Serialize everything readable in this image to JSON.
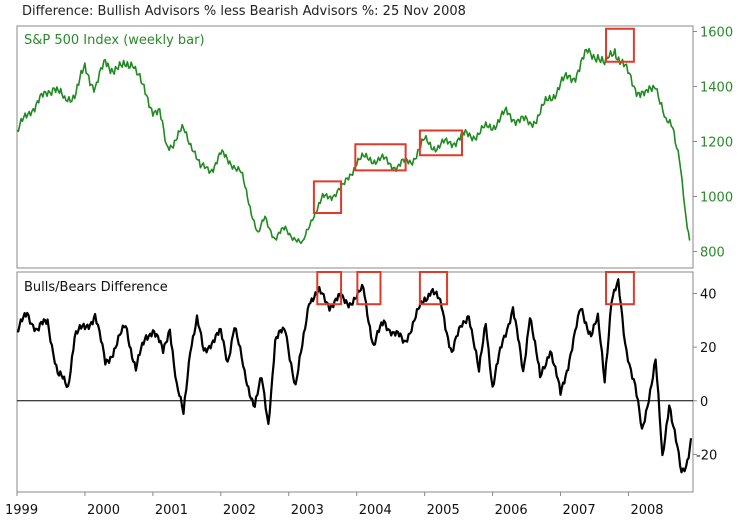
{
  "title": "Difference: Bullish Advisors % less Bearish Advisors %: 25 Nov 2008",
  "colors": {
    "sp500_line": "#1f8a1f",
    "sp500_label": "#2a8a2a",
    "diff_line": "#000000",
    "highlight_box": "#e03a2a",
    "axis": "#888888",
    "zero_line": "#000000"
  },
  "chart_data": [
    {
      "type": "line",
      "title": "S&P 500 Index (weekly bar)",
      "xlim": [
        1999.0,
        2008.95
      ],
      "ylim": [
        740,
        1620
      ],
      "yticks": [
        800,
        1000,
        1200,
        1400,
        1600
      ],
      "series": [
        {
          "name": "S&P 500 Index (weekly bar)",
          "x": [
            1999.0,
            1999.2,
            1999.4,
            1999.55,
            1999.7,
            1999.85,
            2000.0,
            2000.15,
            2000.3,
            2000.45,
            2000.55,
            2000.7,
            2000.85,
            2001.0,
            2001.1,
            2001.2,
            2001.3,
            2001.45,
            2001.6,
            2001.7,
            2001.85,
            2002.0,
            2002.15,
            2002.3,
            2002.45,
            2002.55,
            2002.65,
            2002.8,
            2002.95,
            2003.1,
            2003.2,
            2003.35,
            2003.5,
            2003.65,
            2003.8,
            2004.0,
            2004.2,
            2004.4,
            2004.6,
            2004.8,
            2005.0,
            2005.2,
            2005.4,
            2005.6,
            2005.8,
            2006.0,
            2006.2,
            2006.4,
            2006.55,
            2006.8,
            2007.0,
            2007.2,
            2007.4,
            2007.55,
            2007.65,
            2007.8,
            2007.95,
            2008.1,
            2008.25,
            2008.4,
            2008.55,
            2008.65,
            2008.75,
            2008.85,
            2008.9
          ],
          "values": [
            1230,
            1320,
            1360,
            1410,
            1340,
            1380,
            1460,
            1400,
            1480,
            1470,
            1460,
            1500,
            1390,
            1320,
            1300,
            1180,
            1200,
            1240,
            1180,
            1100,
            1100,
            1150,
            1130,
            1080,
            950,
            860,
            920,
            850,
            880,
            850,
            820,
            930,
            990,
            1010,
            1030,
            1130,
            1140,
            1130,
            1110,
            1130,
            1200,
            1180,
            1200,
            1220,
            1230,
            1260,
            1300,
            1280,
            1260,
            1340,
            1410,
            1440,
            1520,
            1520,
            1470,
            1540,
            1460,
            1400,
            1360,
            1420,
            1260,
            1260,
            1150,
            900,
            840
          ]
        }
      ]
    },
    {
      "type": "line",
      "title": "Bulls/Bears Difference",
      "xlim": [
        1999.0,
        2008.95
      ],
      "ylim": [
        -34,
        48
      ],
      "yticks": [
        -20,
        0,
        20,
        40
      ],
      "xticks": [
        "1999",
        "2000",
        "2001",
        "2002",
        "2003",
        "2004",
        "2005",
        "2006",
        "2007",
        "2008"
      ],
      "series": [
        {
          "name": "Bulls/Bears Difference",
          "x": [
            1999.0,
            1999.15,
            1999.3,
            1999.45,
            1999.6,
            1999.75,
            1999.85,
            2000.0,
            2000.15,
            2000.3,
            2000.45,
            2000.6,
            2000.75,
            2000.9,
            2001.0,
            2001.15,
            2001.25,
            2001.35,
            2001.45,
            2001.55,
            2001.65,
            2001.75,
            2001.85,
            2002.0,
            2002.1,
            2002.2,
            2002.35,
            2002.5,
            2002.6,
            2002.7,
            2002.8,
            2002.95,
            2003.1,
            2003.2,
            2003.3,
            2003.45,
            2003.6,
            2003.75,
            2003.9,
            2004.0,
            2004.1,
            2004.25,
            2004.4,
            2004.55,
            2004.7,
            2004.85,
            2005.0,
            2005.1,
            2005.25,
            2005.4,
            2005.55,
            2005.65,
            2005.8,
            2005.9,
            2006.0,
            2006.15,
            2006.3,
            2006.45,
            2006.55,
            2006.7,
            2006.85,
            2007.0,
            2007.15,
            2007.3,
            2007.45,
            2007.55,
            2007.65,
            2007.75,
            2007.85,
            2007.95,
            2008.1,
            2008.2,
            2008.3,
            2008.4,
            2008.5,
            2008.6,
            2008.7,
            2008.78,
            2008.85,
            2008.92
          ],
          "values": [
            25,
            33,
            26,
            30,
            10,
            5,
            25,
            27,
            32,
            14,
            20,
            28,
            12,
            24,
            27,
            18,
            28,
            5,
            -5,
            20,
            30,
            18,
            22,
            25,
            15,
            28,
            10,
            -2,
            8,
            -8,
            22,
            27,
            5,
            20,
            38,
            40,
            36,
            38,
            37,
            38,
            42,
            20,
            30,
            25,
            22,
            30,
            38,
            42,
            35,
            18,
            28,
            33,
            10,
            30,
            5,
            22,
            35,
            10,
            33,
            8,
            20,
            2,
            18,
            34,
            25,
            30,
            8,
            38,
            43,
            22,
            5,
            -12,
            2,
            15,
            -22,
            0,
            -15,
            -28,
            -24,
            -14
          ]
        }
      ]
    }
  ]
}
